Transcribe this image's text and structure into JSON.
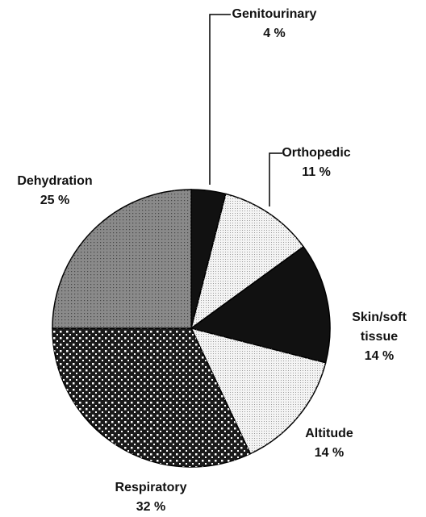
{
  "chart_data": {
    "type": "pie",
    "categories": [
      "Genitourinary",
      "Orthopedic",
      "Skin/soft tissue",
      "Altitude",
      "Respiratory",
      "Dehydration"
    ],
    "values": [
      4,
      11,
      14,
      14,
      32,
      25
    ],
    "value_labels": [
      "4 %",
      "11 %",
      "14 %",
      "14 %",
      "32 %",
      "25 %"
    ],
    "colors": [
      "#111111",
      "#f4f4f4",
      "#111111",
      "#f4f4f4",
      "#1a1a1a",
      "#8a8a8a"
    ]
  }
}
